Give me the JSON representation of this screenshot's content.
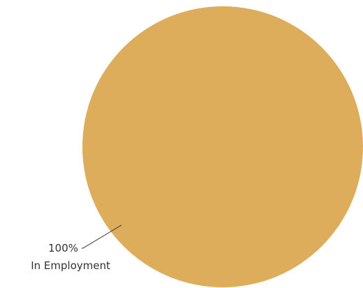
{
  "chart_data": {
    "type": "pie",
    "slices": [
      {
        "label": "In Employment",
        "value": 100,
        "percent_label": "100%",
        "color": "#DDAD5B"
      }
    ],
    "title": "",
    "legend": "none"
  }
}
